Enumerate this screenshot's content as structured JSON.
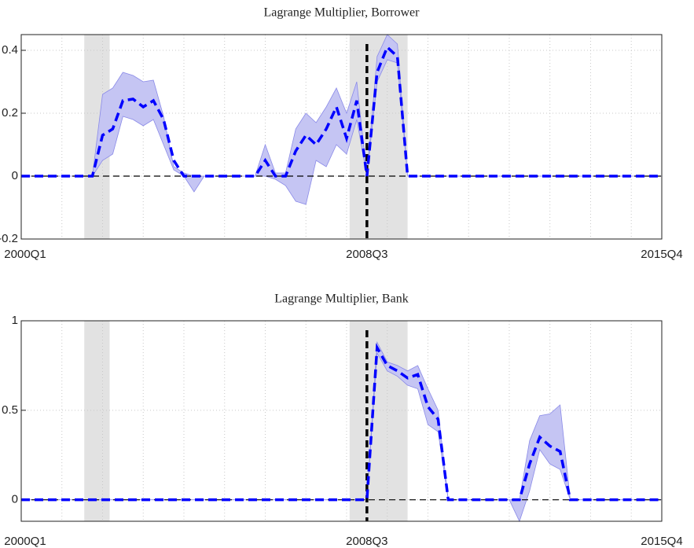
{
  "chart_data": [
    {
      "type": "line",
      "title": "Lagrange Multiplier, Borrower",
      "categories": [
        "2000Q1",
        null,
        null,
        null,
        null,
        null,
        null,
        null,
        null,
        null,
        null,
        null,
        null,
        null,
        null,
        null,
        null,
        null,
        null,
        null,
        null,
        null,
        null,
        null,
        null,
        null,
        null,
        null,
        null,
        null,
        null,
        null,
        null,
        null,
        "2008Q3",
        null,
        null,
        null,
        null,
        null,
        null,
        null,
        null,
        null,
        null,
        null,
        null,
        null,
        null,
        null,
        null,
        null,
        null,
        null,
        null,
        null,
        null,
        null,
        null,
        null,
        null,
        null,
        null,
        "2015Q4"
      ],
      "series": [
        {
          "color": "#0000ff",
          "band_color": "#c5c5f3",
          "values": [
            0,
            0,
            0,
            0,
            0,
            0,
            0,
            0,
            0.13,
            0.15,
            0.24,
            0.245,
            0.22,
            0.24,
            0.18,
            0.05,
            0,
            0,
            0,
            0,
            0,
            0,
            0,
            0,
            0.05,
            0,
            0,
            0.08,
            0.13,
            0.1,
            0.15,
            0.22,
            0.12,
            0.24,
            0,
            0.33,
            0.41,
            0.38,
            0,
            0,
            0,
            0,
            0,
            0,
            0,
            0,
            0,
            0,
            0,
            0,
            0,
            0,
            0,
            0,
            0,
            0,
            0,
            0,
            0,
            0,
            0,
            0,
            0,
            0
          ],
          "band_upper": [
            0,
            0,
            0,
            0,
            0,
            0,
            0,
            0,
            0.26,
            0.28,
            0.33,
            0.32,
            0.3,
            0.305,
            0.19,
            0.03,
            0.01,
            0,
            0,
            0,
            0,
            0,
            0,
            0,
            0.1,
            0.01,
            0.01,
            0.15,
            0.2,
            0.17,
            0.22,
            0.28,
            0.2,
            0.3,
            0,
            0.38,
            0.45,
            0.42,
            0,
            0,
            0,
            0,
            0,
            0,
            0,
            0,
            0,
            0,
            0,
            0,
            0,
            0,
            0,
            0,
            0,
            0,
            0,
            0,
            0,
            0,
            0,
            0,
            0,
            0
          ],
          "band_lower": [
            0,
            0,
            0,
            0,
            0,
            0,
            0,
            0,
            0.05,
            0.07,
            0.19,
            0.18,
            0.16,
            0.18,
            0.1,
            0.02,
            0,
            -0.05,
            0,
            0,
            0,
            0,
            0,
            0,
            0,
            -0.01,
            -0.03,
            -0.08,
            -0.09,
            0.05,
            0.03,
            0.1,
            0.07,
            0.18,
            0,
            0.3,
            0.37,
            0.36,
            0,
            0,
            0,
            0,
            0,
            0,
            0,
            0,
            0,
            0,
            0,
            0,
            0,
            0,
            0,
            0,
            0,
            0,
            0,
            0,
            0,
            0,
            0,
            0,
            0,
            0
          ]
        }
      ],
      "ylim": [
        -0.2,
        0.45
      ],
      "yticks": [
        -0.2,
        0,
        0.2,
        0.4
      ],
      "grid": true,
      "shaded": [
        [
          6.2,
          8.7
        ],
        [
          32.3,
          38
        ]
      ],
      "vline": 34,
      "hline": 0
    },
    {
      "type": "line",
      "title": "Lagrange Multiplier, Bank",
      "categories": [
        "2000Q1",
        null,
        null,
        null,
        null,
        null,
        null,
        null,
        null,
        null,
        null,
        null,
        null,
        null,
        null,
        null,
        null,
        null,
        null,
        null,
        null,
        null,
        null,
        null,
        null,
        null,
        null,
        null,
        null,
        null,
        null,
        null,
        null,
        null,
        "2008Q3",
        null,
        null,
        null,
        null,
        null,
        null,
        null,
        null,
        null,
        null,
        null,
        null,
        null,
        null,
        null,
        null,
        null,
        null,
        null,
        null,
        null,
        null,
        null,
        null,
        null,
        null,
        null,
        null,
        "2015Q4"
      ],
      "series": [
        {
          "color": "#0000ff",
          "band_color": "#c5c5f3",
          "values": [
            0,
            0,
            0,
            0,
            0,
            0,
            0,
            0,
            0,
            0,
            0,
            0,
            0,
            0,
            0,
            0,
            0,
            0,
            0,
            0,
            0,
            0,
            0,
            0,
            0,
            0,
            0,
            0,
            0,
            0,
            0,
            0,
            0,
            0,
            0,
            0.85,
            0.75,
            0.72,
            0.68,
            0.7,
            0.52,
            0.45,
            0,
            0,
            0,
            0,
            0,
            0,
            0,
            0,
            0.2,
            0.35,
            0.3,
            0.27,
            0,
            0,
            0,
            0,
            0,
            0,
            0,
            0,
            0,
            0
          ],
          "band_upper": [
            0,
            0,
            0,
            0,
            0,
            0,
            0,
            0,
            0,
            0,
            0,
            0,
            0,
            0,
            0,
            0,
            0,
            0,
            0,
            0,
            0,
            0,
            0,
            0,
            0,
            0,
            0,
            0,
            0,
            0,
            0,
            0,
            0,
            0,
            0,
            0.88,
            0.77,
            0.75,
            0.72,
            0.75,
            0.62,
            0.5,
            0,
            0,
            0,
            0,
            0,
            0,
            0,
            0,
            0.33,
            0.47,
            0.48,
            0.53,
            0,
            0,
            0,
            0,
            0,
            0,
            0,
            0,
            0,
            0
          ],
          "band_lower": [
            0,
            0,
            0,
            0,
            0,
            0,
            0,
            0,
            0,
            0,
            0,
            0,
            0,
            0,
            0,
            0,
            0,
            0,
            0,
            0,
            0,
            0,
            0,
            0,
            0,
            0,
            0,
            0,
            0,
            0,
            0,
            0,
            0,
            0,
            0,
            0.82,
            0.72,
            0.69,
            0.64,
            0.62,
            0.42,
            0.38,
            0,
            0,
            0,
            0,
            0,
            0,
            0,
            -0.12,
            0.05,
            0.28,
            0.2,
            0.17,
            0,
            0,
            0,
            0,
            0,
            0,
            0,
            0,
            0,
            0
          ]
        }
      ],
      "ylim": [
        -0.12,
        1
      ],
      "yticks": [
        0,
        0.5,
        1
      ],
      "grid": true,
      "shaded": [
        [
          6.2,
          8.7
        ],
        [
          32.3,
          38
        ]
      ],
      "vline": 34,
      "hline": 0
    }
  ]
}
